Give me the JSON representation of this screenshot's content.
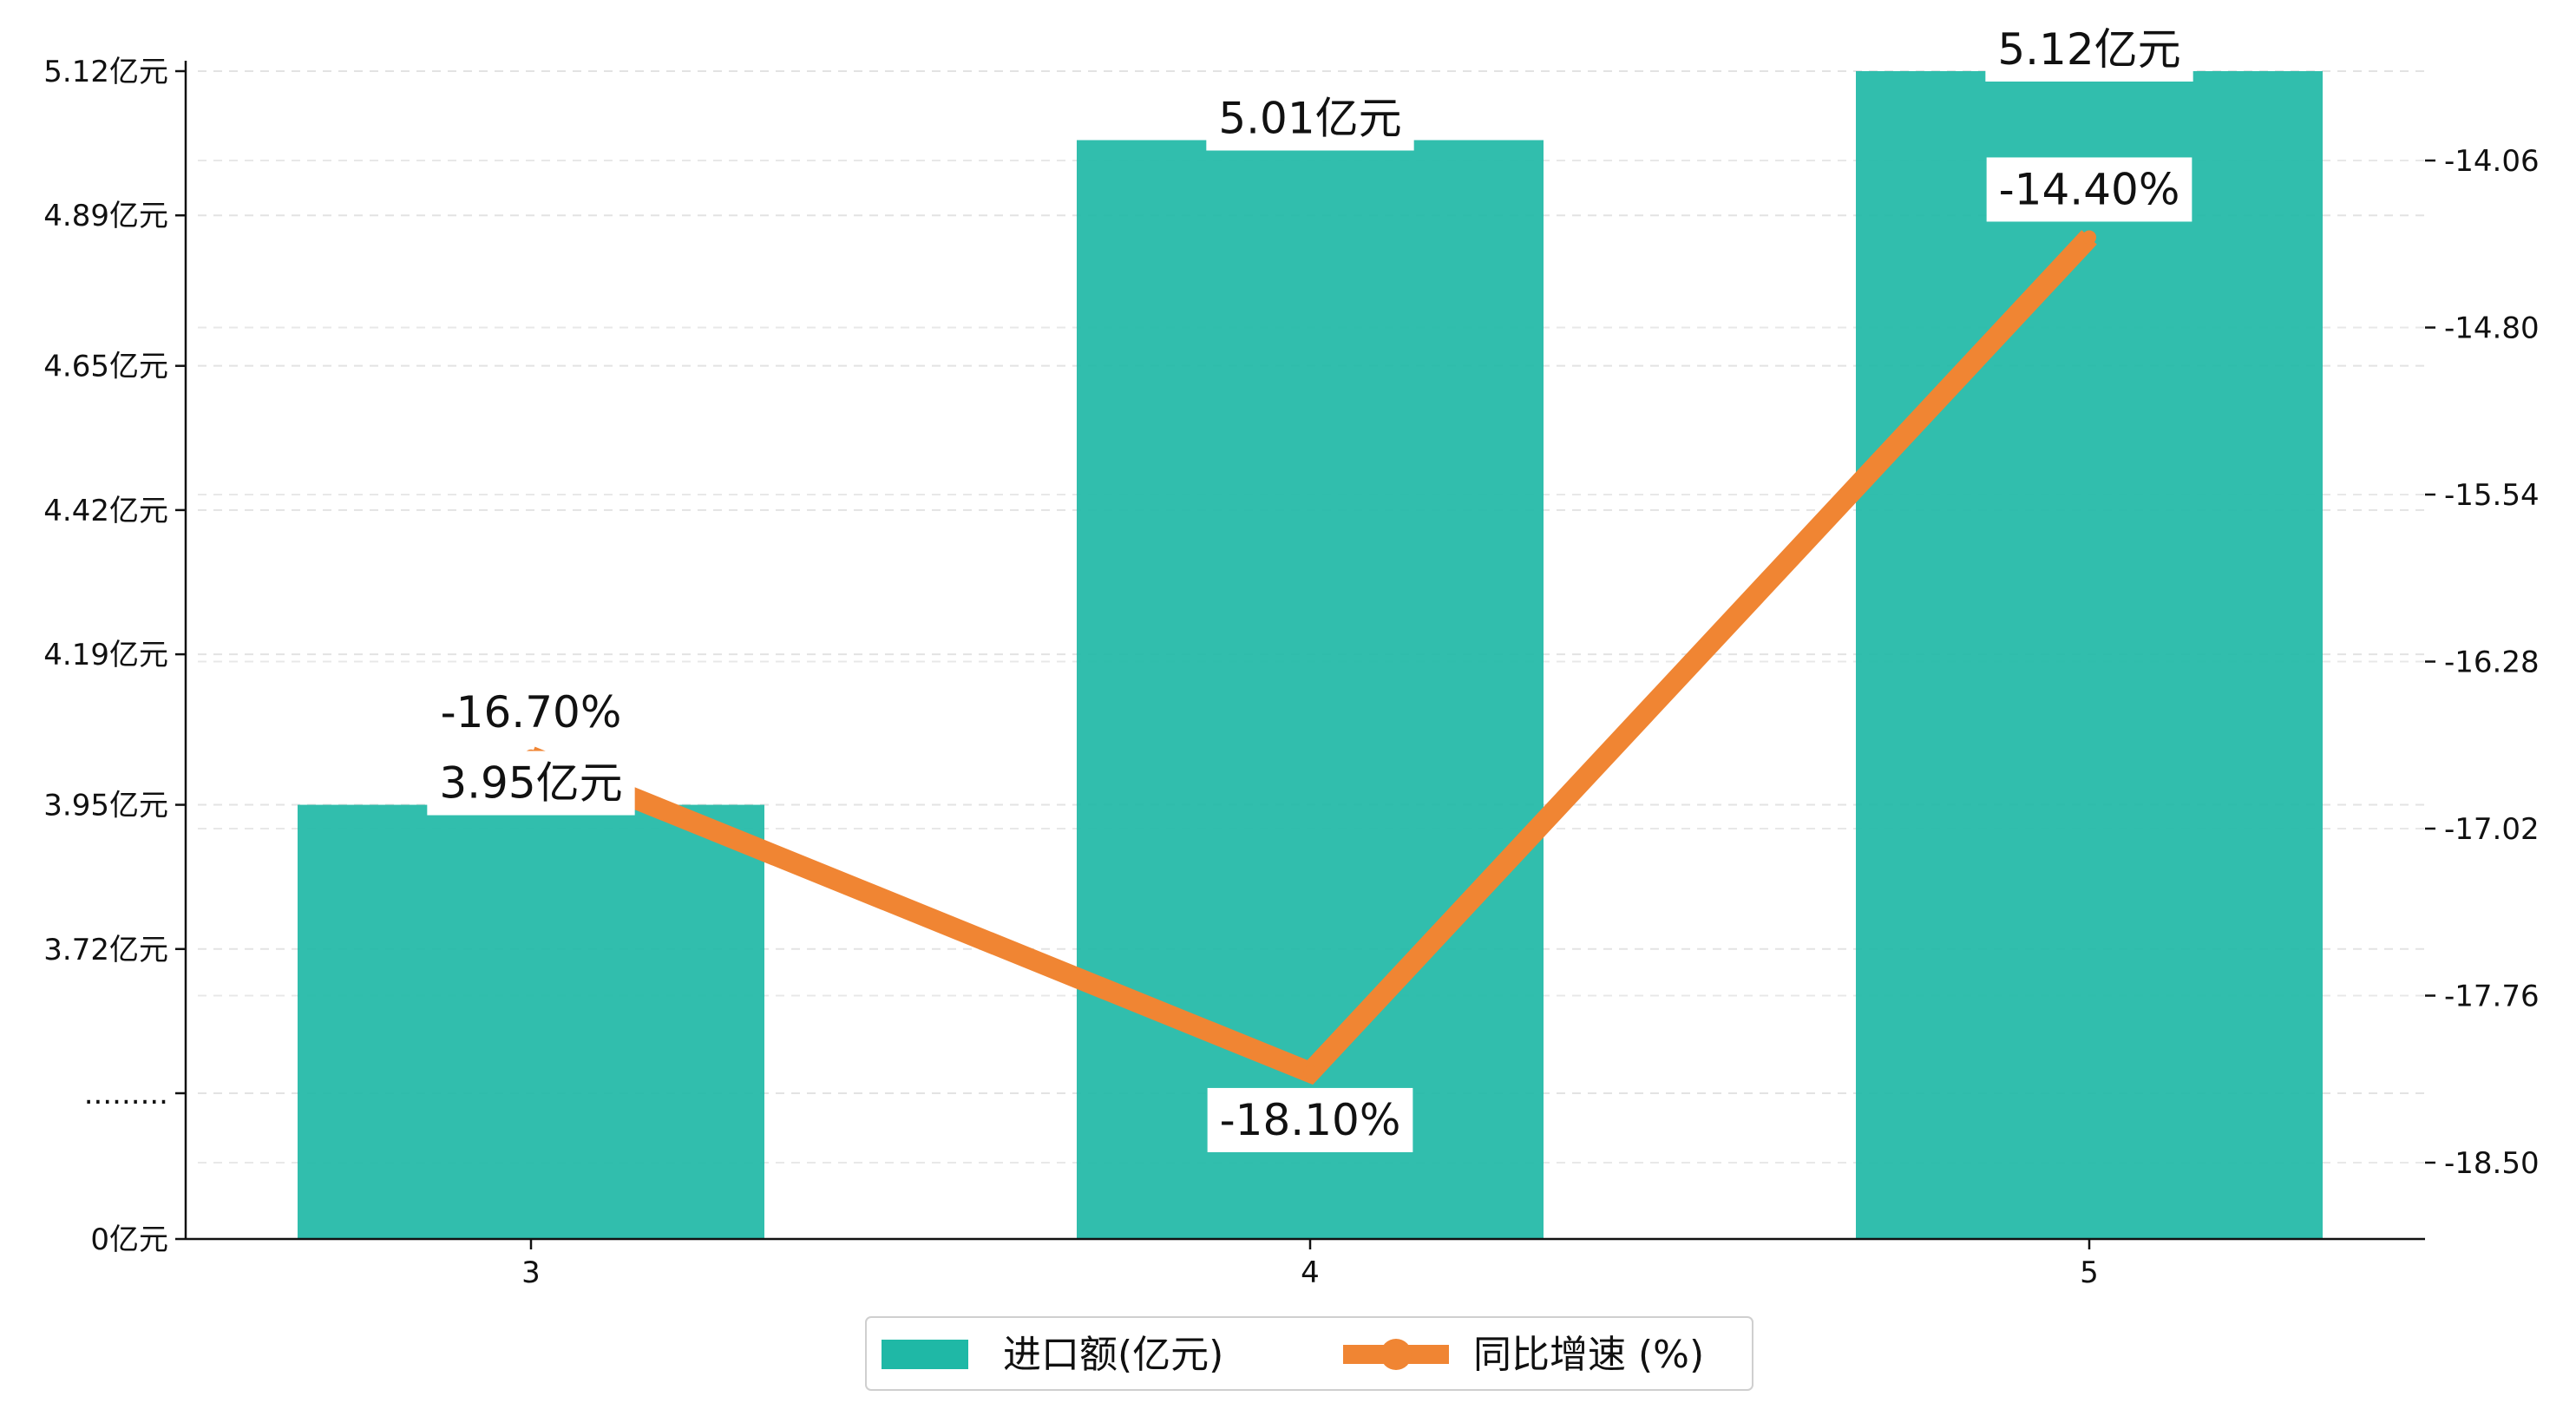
{
  "chart_data": {
    "type": "bar+line",
    "categories": [
      "3",
      "4",
      "5"
    ],
    "series": [
      {
        "name": "进口额(亿元)",
        "kind": "bar",
        "axis": "left",
        "values": [
          3.95,
          5.01,
          5.12
        ],
        "labels": [
          "3.95亿元",
          "5.01亿元",
          "5.12亿元"
        ],
        "color": "#1fb8a6"
      },
      {
        "name": "同比增速 (%)",
        "kind": "line",
        "axis": "right",
        "values": [
          -16.7,
          -18.1,
          -14.4
        ],
        "labels": [
          "-16.70%",
          "-18.10%",
          "-14.40%"
        ],
        "color": "#f08533"
      }
    ],
    "left_axis": {
      "ticks": [
        {
          "value": 0,
          "label": "0亿元"
        },
        {
          "value": 3.49,
          "label": "........."
        },
        {
          "value": 3.72,
          "label": "3.72亿元"
        },
        {
          "value": 3.95,
          "label": "3.95亿元"
        },
        {
          "value": 4.19,
          "label": "4.19亿元"
        },
        {
          "value": 4.42,
          "label": "4.42亿元"
        },
        {
          "value": 4.65,
          "label": "4.65亿元"
        },
        {
          "value": 4.89,
          "label": "4.89亿元"
        },
        {
          "value": 5.12,
          "label": "5.12亿元"
        }
      ],
      "broken": true
    },
    "right_axis": {
      "ticks": [
        -18.5,
        -17.76,
        -17.02,
        -16.28,
        -15.54,
        -14.8,
        -14.06
      ],
      "tick_labels": [
        "-18.50",
        "-17.76",
        "-17.02",
        "-16.28",
        "-15.54",
        "-14.80",
        "-14.06"
      ],
      "range": [
        -18.84,
        -13.68
      ]
    },
    "grid": "horizontal dashed",
    "legend_position": "bottom-center"
  }
}
